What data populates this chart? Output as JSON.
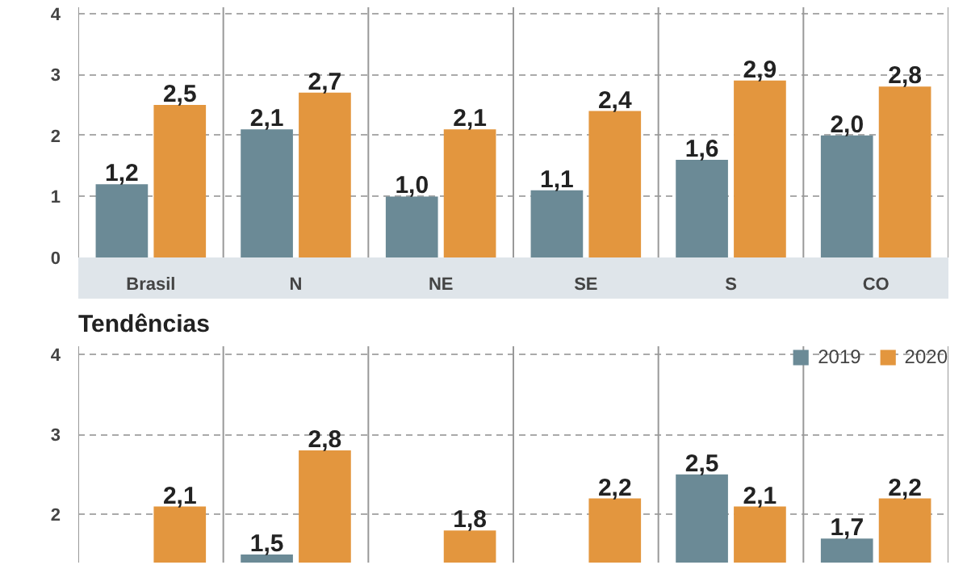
{
  "chart_data": [
    {
      "type": "bar",
      "categories": [
        "Brasil",
        "N",
        "NE",
        "SE",
        "S",
        "CO"
      ],
      "ylim": [
        0,
        4.1
      ],
      "yticks": [
        0,
        1,
        2,
        3,
        4
      ],
      "grid": true,
      "legend": false,
      "series": [
        {
          "color": "#6b8a96",
          "values": [
            1.2,
            2.1,
            1.0,
            1.1,
            1.6,
            2.0
          ],
          "value_labels": [
            "1,2",
            "2,1",
            "1,0",
            "1,1",
            "1,6",
            "2,0"
          ]
        },
        {
          "color": "#e3963e",
          "values": [
            2.5,
            2.7,
            2.1,
            2.4,
            2.9,
            2.8
          ],
          "value_labels": [
            "2,5",
            "2,7",
            "2,1",
            "2,4",
            "2,9",
            "2,8"
          ]
        }
      ]
    },
    {
      "type": "bar",
      "title": "Tendências",
      "categories": [
        null,
        null,
        null,
        null,
        null,
        null
      ],
      "ylim": [
        1.4,
        4.1
      ],
      "yticks": [
        2,
        3,
        4
      ],
      "grid": true,
      "legend": "top right",
      "tick_labels": "y",
      "series": [
        {
          "name": "2019",
          "color": "#6b8a96",
          "values": [
            null,
            1.5,
            null,
            null,
            2.5,
            1.7
          ],
          "value_labels": [
            null,
            "1,5",
            null,
            null,
            "2,5",
            "1,7"
          ]
        },
        {
          "name": "2020",
          "color": "#e3963e",
          "values": [
            2.1,
            2.8,
            1.8,
            2.2,
            2.1,
            2.2
          ],
          "value_labels": [
            "2,1",
            "2,8",
            "1,8",
            "2,2",
            "2,1",
            "2,2"
          ]
        }
      ]
    }
  ]
}
